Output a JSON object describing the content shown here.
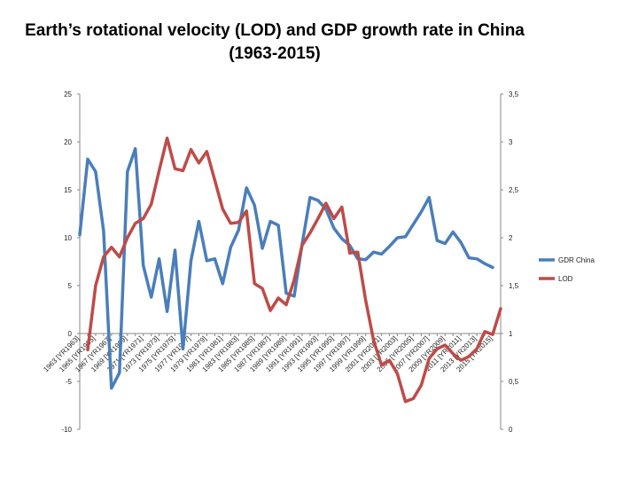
{
  "chart_data": {
    "type": "line",
    "title_line1": "Earth’s rotational velocity (LOD) and GDP growth rate in China",
    "title_line2": "(1963-2015)",
    "x": [
      1963,
      1964,
      1965,
      1966,
      1967,
      1968,
      1969,
      1970,
      1971,
      1972,
      1973,
      1974,
      1975,
      1976,
      1977,
      1978,
      1979,
      1980,
      1981,
      1982,
      1983,
      1984,
      1985,
      1986,
      1987,
      1988,
      1989,
      1990,
      1991,
      1992,
      1993,
      1994,
      1995,
      1996,
      1997,
      1998,
      1999,
      2000,
      2001,
      2002,
      2003,
      2004,
      2005,
      2006,
      2007,
      2008,
      2009,
      2010,
      2011,
      2012,
      2013,
      2014,
      2015,
      2016
    ],
    "x_tick_labels": [
      "1963 [YR1963]",
      "1965 [YR1965]",
      "1967 [YR1967]",
      "1969 [YR1969]",
      "1971 [YR1971]",
      "1973 [YR1973]",
      "1975 [YR1975]",
      "1977 [YR1977]",
      "1979 [YR1979]",
      "1981 [YR1981]",
      "1983 [YR1983]",
      "1985 [YR1985]",
      "1987 [YR1987]",
      "1989 [YR1989]",
      "1991 [YR1991]",
      "1993 [YR1993]",
      "1995 [YR1995]",
      "1997 [YR1997]",
      "1999 [YR1999]",
      "2001 [YR2001]",
      "2003 [YR2003]",
      "2005 [YR2005]",
      "2007 [YR2007]",
      "2009 [YR2009]",
      "2011 [YR2011]",
      "2013 [YR2013]",
      "2015 [YR2015]"
    ],
    "y_left": {
      "min": -10,
      "max": 25,
      "ticks": [
        "-10",
        "-5",
        "0",
        "5",
        "10",
        "15",
        "20",
        "25"
      ]
    },
    "y_right": {
      "min": 0,
      "max": 3.5,
      "ticks": [
        "0",
        "0,5",
        "1",
        "1,5",
        "2",
        "2,5",
        "3",
        "3,5"
      ]
    },
    "series": [
      {
        "name": "GDR China",
        "axis": "left",
        "color": "#4a7ebb",
        "values": [
          10.3,
          18.2,
          16.9,
          10.7,
          -5.7,
          -4.1,
          16.9,
          19.3,
          7.1,
          3.8,
          7.8,
          2.3,
          8.7,
          -1.6,
          7.6,
          11.7,
          7.6,
          7.8,
          5.2,
          9.0,
          10.8,
          15.2,
          13.4,
          8.9,
          11.7,
          11.3,
          4.2,
          3.9,
          9.3,
          14.2,
          13.9,
          13.0,
          11.0,
          9.9,
          9.2,
          7.8,
          7.7,
          8.5,
          8.3,
          9.1,
          10.0,
          10.1,
          11.4,
          12.7,
          14.2,
          9.7,
          9.4,
          10.6,
          9.5,
          7.9,
          7.8,
          7.3,
          6.9,
          null
        ]
      },
      {
        "name": "LOD",
        "axis": "right",
        "color": "#be4b48",
        "values": [
          null,
          0.83,
          1.5,
          1.8,
          1.9,
          1.8,
          2.0,
          2.15,
          2.2,
          2.35,
          2.7,
          3.04,
          2.72,
          2.7,
          2.92,
          2.78,
          2.9,
          2.6,
          2.3,
          2.15,
          2.16,
          2.28,
          1.52,
          1.47,
          1.24,
          1.37,
          1.3,
          1.56,
          1.92,
          2.05,
          2.2,
          2.36,
          2.2,
          2.32,
          1.84,
          1.85,
          1.35,
          0.93,
          0.67,
          0.72,
          0.58,
          0.29,
          0.32,
          0.46,
          0.74,
          0.84,
          0.88,
          0.79,
          0.72,
          0.76,
          0.84,
          1.02,
          0.99,
          1.26
        ]
      }
    ],
    "legend": [
      "GDR China",
      "LOD"
    ],
    "legend_position": "right"
  }
}
